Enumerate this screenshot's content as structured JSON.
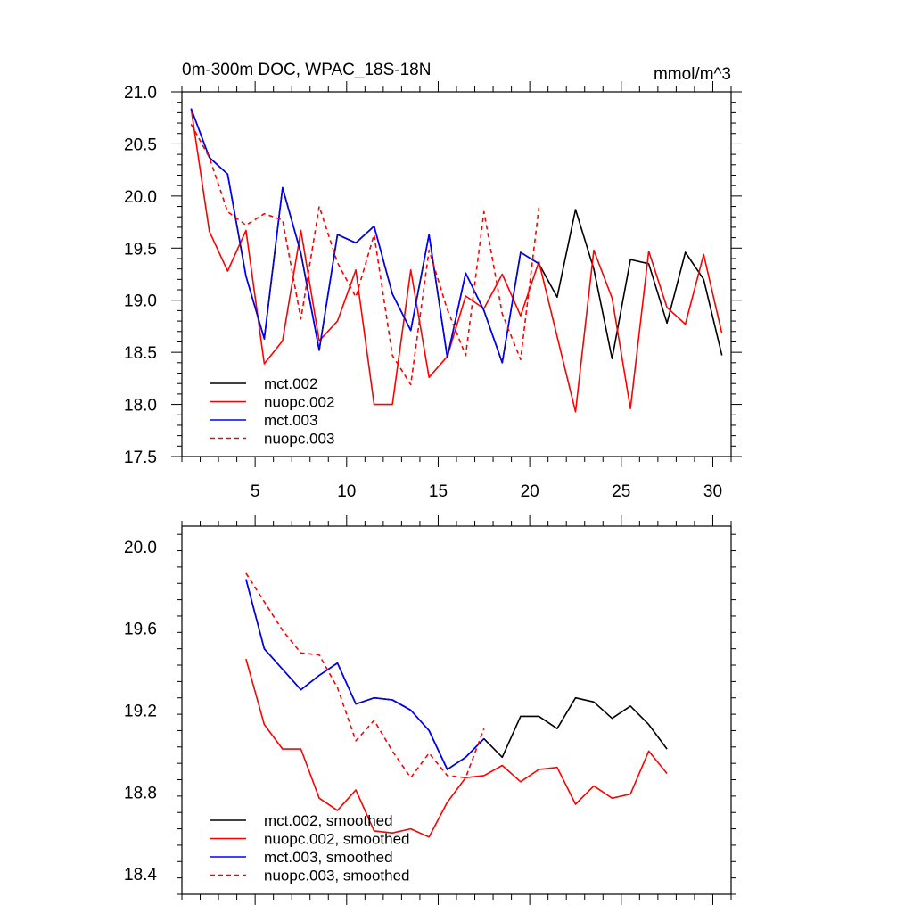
{
  "chart_data": [
    {
      "type": "line",
      "title": "0m-300m DOC, WPAC_18S-18N",
      "units": "mmol/m^3",
      "xlim": [
        1,
        31
      ],
      "ylim": [
        17.5,
        21.0
      ],
      "xticks": [
        5,
        10,
        15,
        20,
        25,
        30
      ],
      "yticks": [
        17.5,
        18.0,
        18.5,
        19.0,
        19.5,
        20.0,
        20.5,
        21.0
      ],
      "ytick_labels": [
        "17.5",
        "18.0",
        "18.5",
        "19.0",
        "19.5",
        "20.0",
        "20.5",
        "21.0"
      ],
      "legend_position": "bottom-left",
      "series": [
        {
          "name": "mct.002",
          "color": "#000000",
          "dash": "solid",
          "x": [
            1.5,
            2.5,
            3.5,
            4.5,
            5.5,
            6.5,
            7.5,
            8.5,
            9.5,
            10.5,
            11.5,
            12.5,
            13.5,
            14.5,
            15.5,
            16.5,
            17.5,
            18.5,
            19.5,
            20.5,
            21.5,
            22.5,
            23.5,
            24.5,
            25.5,
            26.5,
            27.5,
            28.5,
            29.5,
            30.5
          ],
          "values": [
            20.84,
            20.37,
            20.21,
            19.23,
            18.63,
            20.08,
            19.45,
            18.52,
            19.63,
            19.55,
            19.71,
            19.06,
            18.71,
            19.63,
            18.45,
            19.26,
            18.9,
            18.4,
            19.46,
            19.35,
            19.03,
            19.87,
            19.3,
            18.44,
            19.39,
            19.35,
            18.78,
            19.46,
            19.2,
            18.47
          ]
        },
        {
          "name": "nuopc.002",
          "color": "#ff0000",
          "dash": "solid",
          "x": [
            1.5,
            2.5,
            3.5,
            4.5,
            5.5,
            6.5,
            7.5,
            8.5,
            9.5,
            10.5,
            11.5,
            12.5,
            13.5,
            14.5,
            15.5,
            16.5,
            17.5,
            18.5,
            19.5,
            20.5,
            21.5,
            22.5,
            23.5,
            24.5,
            25.5,
            26.5,
            27.5,
            28.5,
            29.5,
            30.5
          ],
          "values": [
            20.84,
            19.66,
            19.28,
            19.67,
            18.39,
            18.61,
            19.67,
            18.61,
            18.8,
            19.29,
            18.0,
            18.0,
            19.29,
            18.26,
            18.46,
            19.04,
            18.92,
            19.25,
            18.85,
            19.37,
            18.65,
            17.93,
            19.48,
            19.02,
            17.96,
            19.47,
            18.93,
            18.77,
            19.44,
            18.68
          ]
        },
        {
          "name": "mct.003",
          "color": "#0000ff",
          "dash": "solid",
          "x": [
            1.5,
            2.5,
            3.5,
            4.5,
            5.5,
            6.5,
            7.5,
            8.5,
            9.5,
            10.5,
            11.5,
            12.5,
            13.5,
            14.5,
            15.5,
            16.5,
            17.5,
            18.5,
            19.5,
            20.5
          ],
          "values": [
            20.84,
            20.37,
            20.21,
            19.23,
            18.63,
            20.08,
            19.45,
            18.52,
            19.63,
            19.55,
            19.71,
            19.06,
            18.71,
            19.63,
            18.45,
            19.26,
            18.9,
            18.4,
            19.46,
            19.35
          ]
        },
        {
          "name": "nuopc.003",
          "color": "#ff0000",
          "dash": "dashed",
          "x": [
            1.5,
            2.5,
            3.5,
            4.5,
            5.5,
            6.5,
            7.5,
            8.5,
            9.5,
            10.5,
            11.5,
            12.5,
            13.5,
            14.5,
            15.5,
            16.5,
            17.5,
            18.5,
            19.5,
            20.5
          ],
          "values": [
            20.69,
            20.37,
            19.85,
            19.72,
            19.83,
            19.77,
            18.82,
            19.9,
            19.36,
            19.03,
            19.63,
            18.47,
            18.19,
            19.48,
            18.91,
            18.47,
            19.85,
            18.87,
            18.43,
            19.89
          ]
        }
      ]
    },
    {
      "type": "line",
      "title": "",
      "xlim": [
        1,
        31
      ],
      "ylim": [
        18.3,
        20.1
      ],
      "xticks": [
        5,
        10,
        15,
        20,
        25,
        30
      ],
      "yticks": [
        18.4,
        18.8,
        19.2,
        19.6,
        20.0
      ],
      "ytick_labels": [
        "18.4",
        "18.8",
        "19.2",
        "19.6",
        "20.0"
      ],
      "legend_position": "bottom-left",
      "series": [
        {
          "name": "mct.002, smoothed",
          "color": "#000000",
          "dash": "solid",
          "x": [
            4.5,
            5.5,
            6.5,
            7.5,
            8.5,
            9.5,
            10.5,
            11.5,
            12.5,
            13.5,
            14.5,
            15.5,
            16.5,
            17.5,
            18.5,
            19.5,
            20.5,
            21.5,
            22.5,
            23.5,
            24.5,
            25.5,
            26.5,
            27.5
          ],
          "values": [
            19.84,
            19.5,
            19.4,
            19.3,
            19.37,
            19.43,
            19.23,
            19.26,
            19.25,
            19.2,
            19.1,
            18.91,
            18.97,
            19.06,
            18.97,
            19.17,
            19.17,
            19.11,
            19.26,
            19.24,
            19.16,
            19.22,
            19.13,
            19.01
          ]
        },
        {
          "name": "nuopc.002, smoothed",
          "color": "#ff0000",
          "dash": "solid",
          "x": [
            4.5,
            5.5,
            6.5,
            7.5,
            8.5,
            9.5,
            10.5,
            11.5,
            12.5,
            13.5,
            14.5,
            15.5,
            16.5,
            17.5,
            18.5,
            19.5,
            20.5,
            21.5,
            22.5,
            23.5,
            24.5,
            25.5,
            26.5,
            27.5
          ],
          "values": [
            19.45,
            19.13,
            19.01,
            19.01,
            18.77,
            18.71,
            18.81,
            18.61,
            18.6,
            18.62,
            18.58,
            18.75,
            18.87,
            18.88,
            18.93,
            18.85,
            18.91,
            18.92,
            18.74,
            18.83,
            18.77,
            18.79,
            19.0,
            18.89
          ]
        },
        {
          "name": "mct.003, smoothed",
          "color": "#0000ff",
          "dash": "solid",
          "x": [
            4.5,
            5.5,
            6.5,
            7.5,
            8.5,
            9.5,
            10.5,
            11.5,
            12.5,
            13.5,
            14.5,
            15.5,
            16.5,
            17.5
          ],
          "values": [
            19.84,
            19.5,
            19.4,
            19.3,
            19.37,
            19.43,
            19.23,
            19.26,
            19.25,
            19.2,
            19.1,
            18.91,
            18.97,
            19.06
          ]
        },
        {
          "name": "nuopc.003, smoothed",
          "color": "#ff0000",
          "dash": "dashed",
          "x": [
            4.5,
            5.5,
            6.5,
            7.5,
            8.5,
            9.5,
            10.5,
            11.5,
            12.5,
            13.5,
            14.5,
            15.5,
            16.5,
            17.5
          ],
          "values": [
            19.87,
            19.73,
            19.59,
            19.48,
            19.47,
            19.31,
            19.05,
            19.15,
            19.0,
            18.87,
            18.99,
            18.88,
            18.87,
            19.11
          ]
        }
      ]
    }
  ]
}
